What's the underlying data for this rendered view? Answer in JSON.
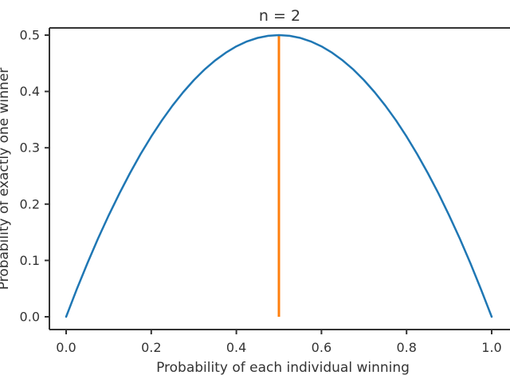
{
  "figure": {
    "background": "#ffffff",
    "text_color": "#333333",
    "spine_color": "#333333"
  },
  "chart_data": {
    "type": "line",
    "title": "n = 2",
    "xlabel": "Probability of each individual winning",
    "ylabel": "Probability of exactly one winner",
    "xlim": [
      -0.04,
      1.054
    ],
    "ylim": [
      -0.023,
      0.513
    ],
    "grid": false,
    "legend": null,
    "xticks": [
      0.0,
      0.2,
      0.4,
      0.6,
      0.8,
      1.0
    ],
    "xtick_labels": [
      "0.0",
      "0.2",
      "0.4",
      "0.6",
      "0.8",
      "1.0"
    ],
    "yticks": [
      0.0,
      0.1,
      0.2,
      0.3,
      0.4,
      0.5
    ],
    "ytick_labels": [
      "0.0",
      "0.1",
      "0.2",
      "0.3",
      "0.4",
      "0.5"
    ],
    "series": [
      {
        "name": "probability-of-exactly-one-winner-curve",
        "color": "#1f77b4",
        "x": [
          0.0,
          0.025,
          0.05,
          0.075,
          0.1,
          0.125,
          0.15,
          0.175,
          0.2,
          0.225,
          0.25,
          0.275,
          0.3,
          0.325,
          0.35,
          0.375,
          0.4,
          0.425,
          0.45,
          0.475,
          0.5,
          0.525,
          0.55,
          0.575,
          0.6,
          0.625,
          0.65,
          0.675,
          0.7,
          0.725,
          0.75,
          0.775,
          0.8,
          0.825,
          0.85,
          0.875,
          0.9,
          0.925,
          0.95,
          0.975,
          1.0
        ],
        "y": [
          0.0,
          0.04875,
          0.095,
          0.13875,
          0.18,
          0.21875,
          0.255,
          0.28875,
          0.32,
          0.34875,
          0.375,
          0.39875,
          0.42,
          0.43875,
          0.455,
          0.46875,
          0.48,
          0.48875,
          0.495,
          0.49875,
          0.5,
          0.49875,
          0.495,
          0.48875,
          0.48,
          0.46875,
          0.455,
          0.43875,
          0.42,
          0.39875,
          0.375,
          0.34875,
          0.32,
          0.28875,
          0.255,
          0.21875,
          0.18,
          0.13875,
          0.095,
          0.04875,
          0.0
        ]
      }
    ],
    "annotations": [
      {
        "type": "vline",
        "name": "peak-marker",
        "x": 0.5,
        "y0": 0.0,
        "y1": 0.5,
        "color": "#ff7f0e"
      }
    ]
  }
}
